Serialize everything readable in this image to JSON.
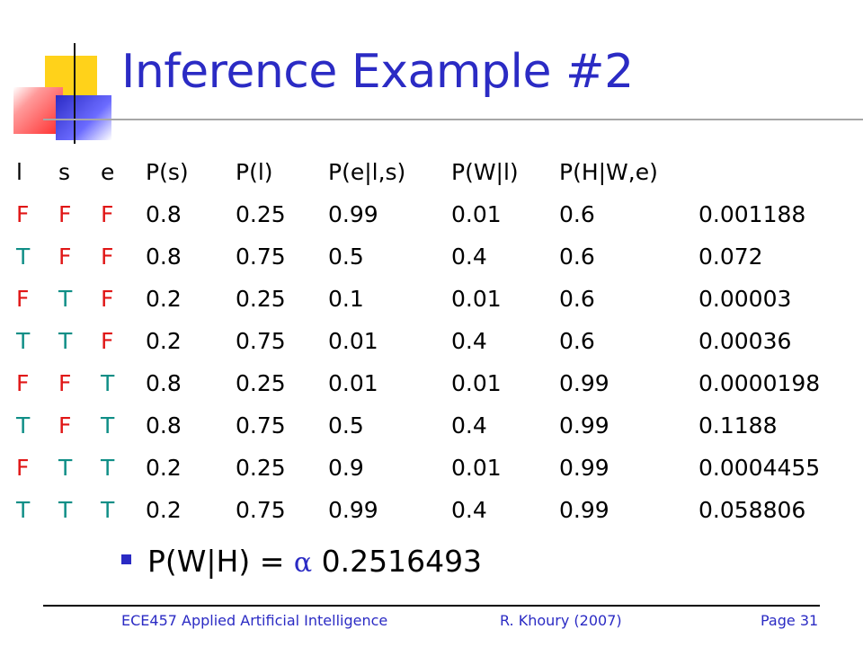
{
  "slide": {
    "title": "Inference Example #2",
    "colors": {
      "title": "#2b2bc4",
      "false_value": "#e01616",
      "true_value": "#0f8e86",
      "footer": "#2b2bc4"
    }
  },
  "table": {
    "headers": [
      "l",
      "s",
      "e",
      "P(s)",
      "P(l)",
      "P(e|l,s)",
      "P(W|l)",
      "P(H|W,e)",
      ""
    ],
    "rows": [
      [
        "F",
        "F",
        "F",
        "0.8",
        "0.25",
        "0.99",
        "0.01",
        "0.6",
        "0.001188"
      ],
      [
        "T",
        "F",
        "F",
        "0.8",
        "0.75",
        "0.5",
        "0.4",
        "0.6",
        "0.072"
      ],
      [
        "F",
        "T",
        "F",
        "0.2",
        "0.25",
        "0.1",
        "0.01",
        "0.6",
        "0.00003"
      ],
      [
        "T",
        "T",
        "F",
        "0.2",
        "0.75",
        "0.01",
        "0.4",
        "0.6",
        "0.00036"
      ],
      [
        "F",
        "F",
        "T",
        "0.8",
        "0.25",
        "0.01",
        "0.01",
        "0.99",
        "0.0000198"
      ],
      [
        "T",
        "F",
        "T",
        "0.8",
        "0.75",
        "0.5",
        "0.4",
        "0.99",
        "0.1188"
      ],
      [
        "F",
        "T",
        "T",
        "0.2",
        "0.25",
        "0.9",
        "0.01",
        "0.99",
        "0.0004455"
      ],
      [
        "T",
        "T",
        "T",
        "0.2",
        "0.75",
        "0.99",
        "0.4",
        "0.99",
        "0.058806"
      ]
    ]
  },
  "bullet": {
    "prefix": "P(W|H) = ",
    "alpha": "α",
    "value": " 0.2516493"
  },
  "footer": {
    "course": "ECE457 Applied Artificial Intelligence",
    "author": "R. Khoury (2007)",
    "page": "Page 31"
  }
}
